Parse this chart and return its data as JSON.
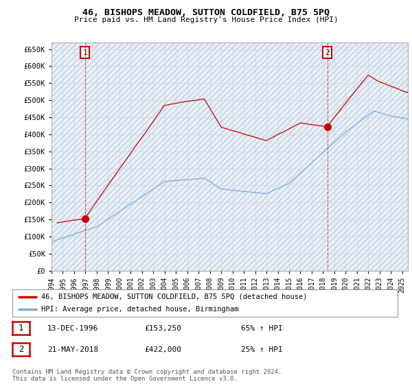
{
  "title": "46, BISHOPS MEADOW, SUTTON COLDFIELD, B75 5PQ",
  "subtitle": "Price paid vs. HM Land Registry's House Price Index (HPI)",
  "ylim": [
    0,
    670000
  ],
  "yticks": [
    0,
    50000,
    100000,
    150000,
    200000,
    250000,
    300000,
    350000,
    400000,
    450000,
    500000,
    550000,
    600000,
    650000
  ],
  "ytick_labels": [
    "£0",
    "£50K",
    "£100K",
    "£150K",
    "£200K",
    "£250K",
    "£300K",
    "£350K",
    "£400K",
    "£450K",
    "£500K",
    "£550K",
    "£600K",
    "£650K"
  ],
  "xlim_start": 1994.0,
  "xlim_end": 2025.5,
  "xticks": [
    1994,
    1995,
    1996,
    1997,
    1998,
    1999,
    2000,
    2001,
    2002,
    2003,
    2004,
    2005,
    2006,
    2007,
    2008,
    2009,
    2010,
    2011,
    2012,
    2013,
    2014,
    2015,
    2016,
    2017,
    2018,
    2019,
    2020,
    2021,
    2022,
    2023,
    2024,
    2025
  ],
  "purchase1_x": 1996.95,
  "purchase1_y": 153250,
  "purchase1_label": "1",
  "purchase1_date": "13-DEC-1996",
  "purchase1_price": "£153,250",
  "purchase1_hpi": "65% ↑ HPI",
  "purchase2_x": 2018.38,
  "purchase2_y": 422000,
  "purchase2_label": "2",
  "purchase2_date": "21-MAY-2018",
  "purchase2_price": "£422,000",
  "purchase2_hpi": "25% ↑ HPI",
  "red_line_color": "#cc0000",
  "blue_line_color": "#7aaed6",
  "vline_color": "#cc0000",
  "grid_color": "#c8d8e8",
  "bg_color": "#ddeeff",
  "plot_bg_color": "#e8f0f8",
  "legend_label_red": "46, BISHOPS MEADOW, SUTTON COLDFIELD, B75 5PQ (detached house)",
  "legend_label_blue": "HPI: Average price, detached house, Birmingham",
  "footer_text": "Contains HM Land Registry data © Crown copyright and database right 2024.\nThis data is licensed under the Open Government Licence v3.0."
}
